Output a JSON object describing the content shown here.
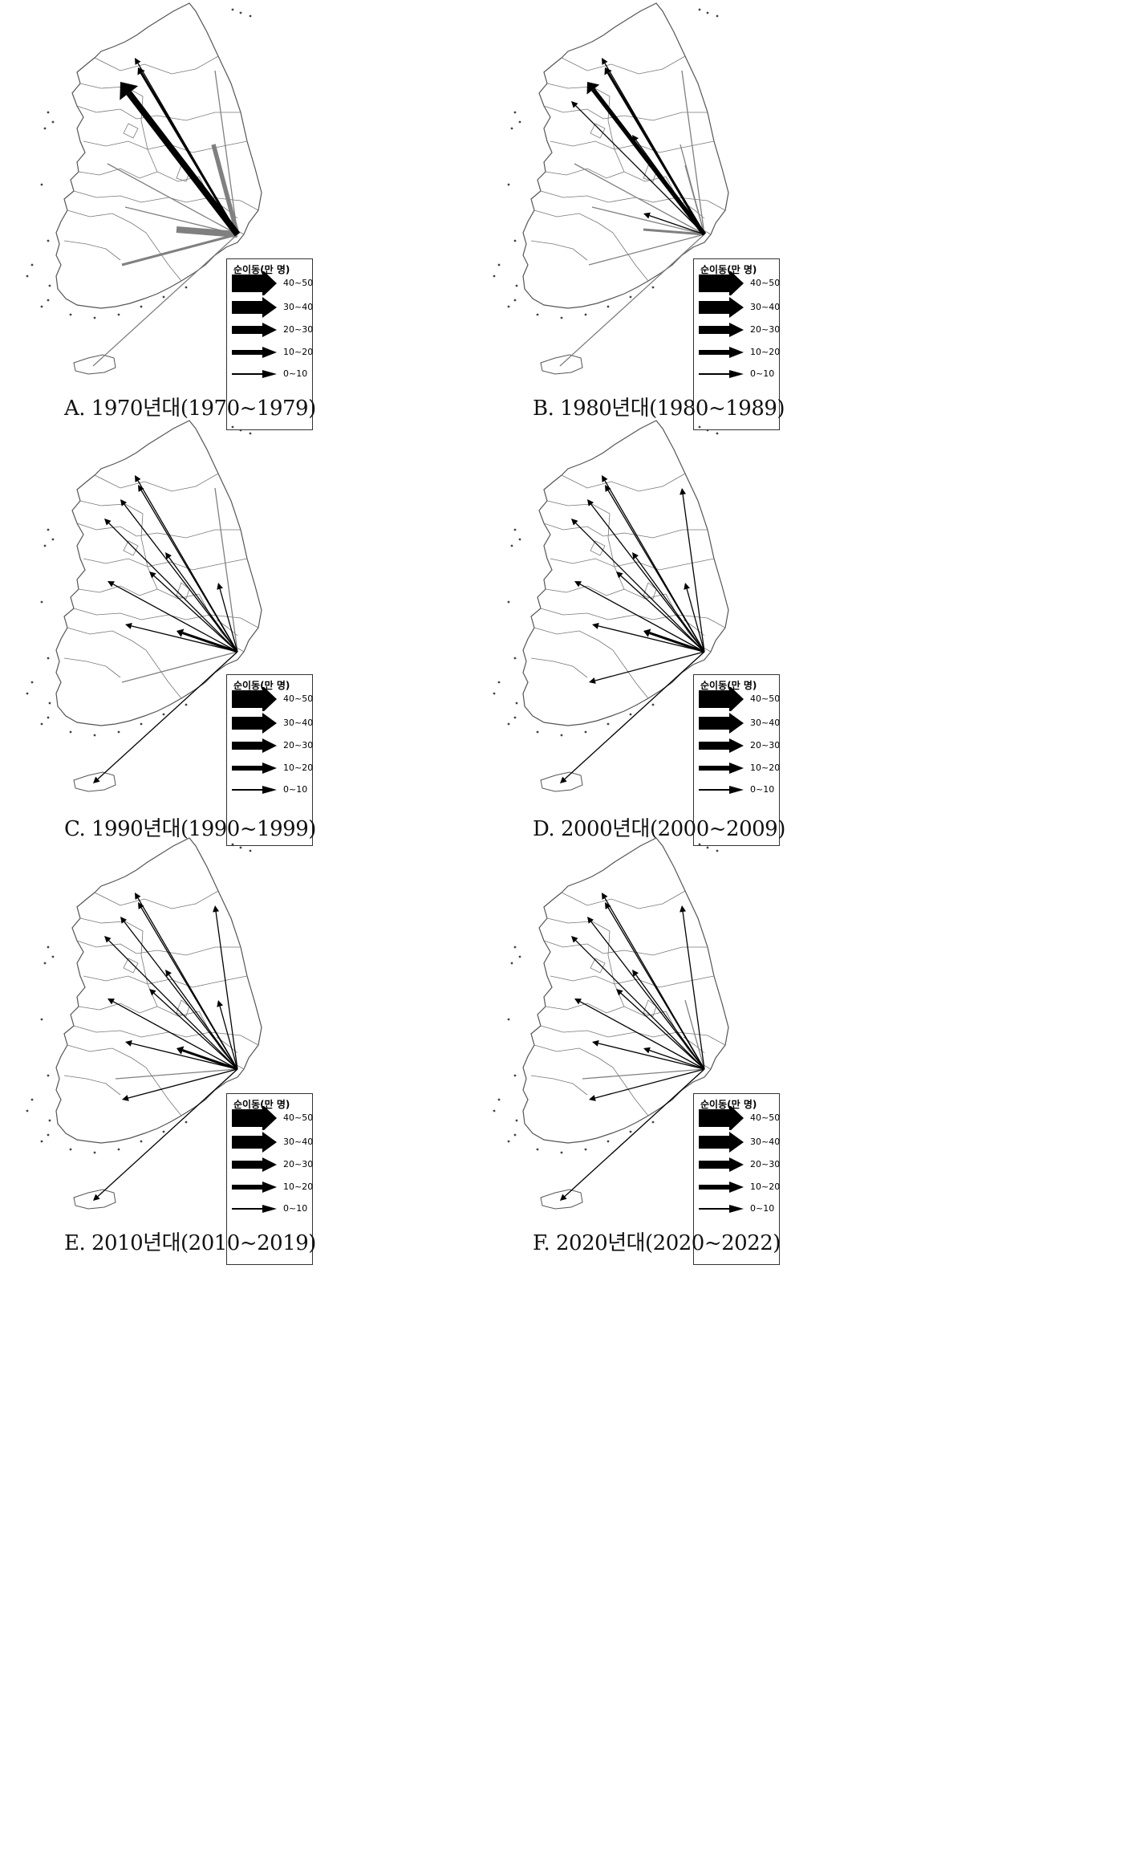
{
  "legend": {
    "title": "순이동(만 명)",
    "classes": [
      "40~50",
      "30~40",
      "20~30",
      "10~20",
      "0~10"
    ]
  },
  "colors": {
    "outflow": "#000000",
    "inflow": "#808080",
    "boundary": "#555555"
  },
  "panels": [
    {
      "id": "A",
      "caption": "A.  1970년대(1970~1979)"
    },
    {
      "id": "B",
      "caption": "B.  1980년대(1980~1989)"
    },
    {
      "id": "C",
      "caption": "C.  1990년대(1990~1999)"
    },
    {
      "id": "D",
      "caption": "D.  2000년대(2000~2009)"
    },
    {
      "id": "E",
      "caption": "E.  2010년대(2010~2019)"
    },
    {
      "id": "F",
      "caption": "F.  2020년대(2020~2022)"
    }
  ],
  "flows": {
    "A": [
      {
        "to": "gyeonggi_n",
        "class": "0~10",
        "dir": "out"
      },
      {
        "to": "seoul",
        "class": "30~40",
        "dir": "out"
      },
      {
        "to": "gyeonggi",
        "class": "10~20",
        "dir": "out"
      },
      {
        "to": "gangwon_n",
        "class": "0~10",
        "dir": "in"
      },
      {
        "to": "gyeongbuk_n",
        "class": "20~30",
        "dir": "in"
      },
      {
        "to": "chungnam",
        "class": "0~10",
        "dir": "in"
      },
      {
        "to": "jeonbuk",
        "class": "0~10",
        "dir": "in"
      },
      {
        "to": "gyeongnam",
        "class": "30~40",
        "dir": "in"
      },
      {
        "to": "jeonnam",
        "class": "10~20",
        "dir": "in"
      },
      {
        "to": "jeju",
        "class": "0~10",
        "dir": "in"
      }
    ],
    "B": [
      {
        "to": "gyeonggi_n",
        "class": "0~10",
        "dir": "out"
      },
      {
        "to": "seoul",
        "class": "20~30",
        "dir": "out"
      },
      {
        "to": "gyeonggi",
        "class": "10~20",
        "dir": "out"
      },
      {
        "to": "incheon",
        "class": "0~10",
        "dir": "out"
      },
      {
        "to": "chungbuk",
        "class": "0~10",
        "dir": "out"
      },
      {
        "to": "gwangju",
        "class": "0~10",
        "dir": "out"
      },
      {
        "to": "gangwon_n",
        "class": "0~10",
        "dir": "in"
      },
      {
        "to": "gyeongbuk_n",
        "class": "0~10",
        "dir": "in"
      },
      {
        "to": "daegu",
        "class": "0~10",
        "dir": "in"
      },
      {
        "to": "chungnam",
        "class": "0~10",
        "dir": "in"
      },
      {
        "to": "jeonbuk",
        "class": "0~10",
        "dir": "in"
      },
      {
        "to": "gyeongnam",
        "class": "10~20",
        "dir": "in"
      },
      {
        "to": "jeonnam",
        "class": "0~10",
        "dir": "in"
      },
      {
        "to": "jeju",
        "class": "0~10",
        "dir": "in"
      }
    ],
    "C": [
      {
        "to": "gyeonggi_n",
        "class": "0~10",
        "dir": "out"
      },
      {
        "to": "seoul",
        "class": "0~10",
        "dir": "out"
      },
      {
        "to": "gyeonggi",
        "class": "0~10",
        "dir": "out"
      },
      {
        "to": "incheon",
        "class": "0~10",
        "dir": "out"
      },
      {
        "to": "chungbuk",
        "class": "0~10",
        "dir": "out"
      },
      {
        "to": "daejeon",
        "class": "0~10",
        "dir": "out"
      },
      {
        "to": "chungnam",
        "class": "0~10",
        "dir": "out"
      },
      {
        "to": "gwangju",
        "class": "10~20",
        "dir": "out"
      },
      {
        "to": "jeonbuk",
        "class": "0~10",
        "dir": "out"
      },
      {
        "to": "daegu",
        "class": "0~10",
        "dir": "out"
      },
      {
        "to": "jeju",
        "class": "0~10",
        "dir": "out"
      },
      {
        "to": "gangwon_n",
        "class": "0~10",
        "dir": "in"
      },
      {
        "to": "jeonnam",
        "class": "0~10",
        "dir": "in"
      }
    ],
    "D": [
      {
        "to": "gyeonggi_n",
        "class": "0~10",
        "dir": "out"
      },
      {
        "to": "seoul",
        "class": "0~10",
        "dir": "out"
      },
      {
        "to": "gyeonggi",
        "class": "0~10",
        "dir": "out"
      },
      {
        "to": "incheon",
        "class": "0~10",
        "dir": "out"
      },
      {
        "to": "chungbuk",
        "class": "0~10",
        "dir": "out"
      },
      {
        "to": "daejeon",
        "class": "0~10",
        "dir": "out"
      },
      {
        "to": "chungnam",
        "class": "0~10",
        "dir": "out"
      },
      {
        "to": "gwangju",
        "class": "10~20",
        "dir": "out"
      },
      {
        "to": "jeonbuk",
        "class": "0~10",
        "dir": "out"
      },
      {
        "to": "daegu",
        "class": "0~10",
        "dir": "out"
      },
      {
        "to": "gangwon_n",
        "class": "0~10",
        "dir": "out"
      },
      {
        "to": "jeonnam",
        "class": "0~10",
        "dir": "out"
      },
      {
        "to": "jeju",
        "class": "0~10",
        "dir": "out"
      }
    ],
    "E": [
      {
        "to": "gyeonggi_n",
        "class": "0~10",
        "dir": "out"
      },
      {
        "to": "seoul",
        "class": "0~10",
        "dir": "out"
      },
      {
        "to": "gyeonggi",
        "class": "0~10",
        "dir": "out"
      },
      {
        "to": "incheon",
        "class": "0~10",
        "dir": "out"
      },
      {
        "to": "chungbuk",
        "class": "0~10",
        "dir": "out"
      },
      {
        "to": "daejeon",
        "class": "0~10",
        "dir": "out"
      },
      {
        "to": "chungnam",
        "class": "0~10",
        "dir": "out"
      },
      {
        "to": "gwangju",
        "class": "10~20",
        "dir": "out"
      },
      {
        "to": "jeonbuk",
        "class": "0~10",
        "dir": "out"
      },
      {
        "to": "daegu",
        "class": "0~10",
        "dir": "out"
      },
      {
        "to": "gangwon_n",
        "class": "0~10",
        "dir": "out"
      },
      {
        "to": "jeonnam_w",
        "class": "0~10",
        "dir": "in"
      },
      {
        "to": "jeonnam",
        "class": "0~10",
        "dir": "out"
      },
      {
        "to": "jeju",
        "class": "0~10",
        "dir": "out"
      }
    ],
    "F": [
      {
        "to": "gyeonggi_n",
        "class": "0~10",
        "dir": "out"
      },
      {
        "to": "seoul",
        "class": "0~10",
        "dir": "out"
      },
      {
        "to": "gyeonggi",
        "class": "0~10",
        "dir": "out"
      },
      {
        "to": "incheon",
        "class": "0~10",
        "dir": "out"
      },
      {
        "to": "chungbuk",
        "class": "0~10",
        "dir": "out"
      },
      {
        "to": "daejeon",
        "class": "0~10",
        "dir": "out"
      },
      {
        "to": "chungnam",
        "class": "0~10",
        "dir": "out"
      },
      {
        "to": "gwangju",
        "class": "0~10",
        "dir": "out"
      },
      {
        "to": "jeonbuk",
        "class": "0~10",
        "dir": "out"
      },
      {
        "to": "daegu",
        "class": "0~10",
        "dir": "in"
      },
      {
        "to": "gangwon_n",
        "class": "0~10",
        "dir": "out"
      },
      {
        "to": "jeonnam_w",
        "class": "0~10",
        "dir": "in"
      },
      {
        "to": "jeonnam",
        "class": "0~10",
        "dir": "out"
      },
      {
        "to": "jeju",
        "class": "0~10",
        "dir": "out"
      }
    ]
  }
}
